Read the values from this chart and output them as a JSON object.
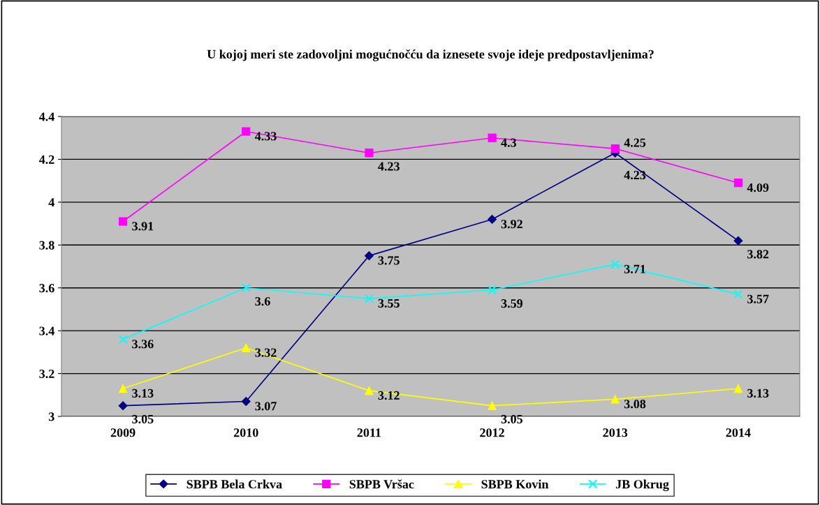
{
  "chart_data": {
    "type": "line",
    "title": "U kojoj meri ste zadovoljni mogućnočću da iznesete svoje ideje predpostavljenima?",
    "categories": [
      "2009",
      "2010",
      "2011",
      "2012",
      "2013",
      "2014"
    ],
    "series": [
      {
        "name": "SBPB Bela Crkva",
        "color": "#000080",
        "marker": "diamond",
        "values": [
          3.05,
          3.07,
          3.75,
          3.92,
          4.23,
          3.82
        ]
      },
      {
        "name": "SBPB Vršac",
        "color": "#ff00ff",
        "marker": "square",
        "values": [
          3.91,
          4.33,
          4.23,
          4.3,
          4.25,
          4.09
        ]
      },
      {
        "name": "SBPB Kovin",
        "color": "#ffff00",
        "marker": "triangle",
        "values": [
          3.13,
          3.32,
          3.12,
          3.05,
          3.08,
          3.13
        ]
      },
      {
        "name": "JB Okrug",
        "color": "#00ffff",
        "marker": "cross",
        "values": [
          3.36,
          3.6,
          3.55,
          3.59,
          3.71,
          3.57
        ]
      }
    ],
    "ylim": [
      3,
      4.4
    ],
    "yticks": [
      3,
      3.2,
      3.4,
      3.6,
      3.8,
      4,
      4.2,
      4.4
    ],
    "grid": "y",
    "legend": "bottom",
    "data_labels": true,
    "line_style": "solid"
  }
}
